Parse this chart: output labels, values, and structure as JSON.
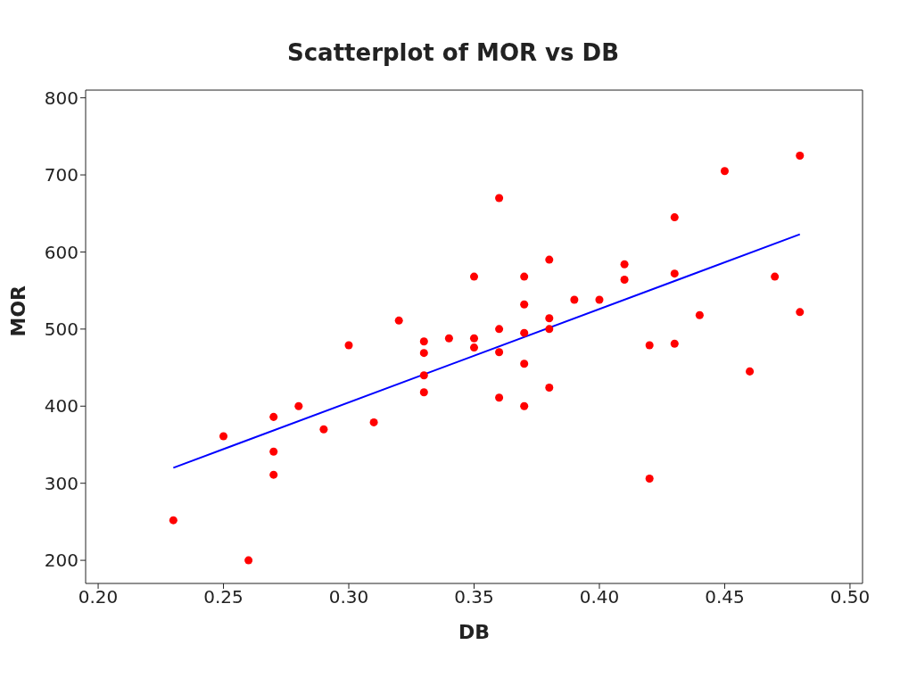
{
  "chart_data": {
    "type": "scatter",
    "title": "Scatterplot of MOR vs DB",
    "xlabel": "DB",
    "ylabel": "MOR",
    "xlim": [
      0.195,
      0.505
    ],
    "xticks": [
      {
        "value": 0.2,
        "label": "0.20"
      },
      {
        "value": 0.25,
        "label": "0.25"
      },
      {
        "value": 0.3,
        "label": "0.30"
      },
      {
        "value": 0.35,
        "label": "0.35"
      },
      {
        "value": 0.4,
        "label": "0.40"
      },
      {
        "value": 0.45,
        "label": "0.45"
      },
      {
        "value": 0.5,
        "label": "0.50"
      }
    ],
    "ylim": [
      170,
      810
    ],
    "yticks": [
      200,
      300,
      400,
      500,
      600,
      700,
      800
    ],
    "grid": false,
    "series": [
      {
        "color": "#ff0000",
        "marker": "circle",
        "x": [
          0.23,
          0.25,
          0.26,
          0.27,
          0.27,
          0.27,
          0.28,
          0.29,
          0.3,
          0.31,
          0.32,
          0.33,
          0.33,
          0.33,
          0.33,
          0.34,
          0.35,
          0.35,
          0.35,
          0.36,
          0.36,
          0.36,
          0.36,
          0.37,
          0.37,
          0.37,
          0.37,
          0.37,
          0.38,
          0.38,
          0.38,
          0.38,
          0.39,
          0.4,
          0.41,
          0.41,
          0.42,
          0.42,
          0.43,
          0.43,
          0.43,
          0.44,
          0.45,
          0.46,
          0.47,
          0.48,
          0.48
        ],
        "values": [
          252,
          361,
          200,
          386,
          341,
          311,
          400,
          370,
          479,
          379,
          511,
          484,
          469,
          440,
          418,
          488,
          568,
          488,
          476,
          670,
          500,
          470,
          411,
          568,
          532,
          495,
          455,
          400,
          590,
          514,
          500,
          424,
          538,
          538,
          584,
          564,
          479,
          306,
          645,
          572,
          481,
          518,
          705,
          445,
          568,
          725,
          522
        ]
      },
      {
        "type": "line",
        "color": "#0000ff",
        "marker": "none",
        "line_style": "solid",
        "x": [
          0.23,
          0.48
        ],
        "values": [
          320,
          623
        ]
      }
    ]
  }
}
